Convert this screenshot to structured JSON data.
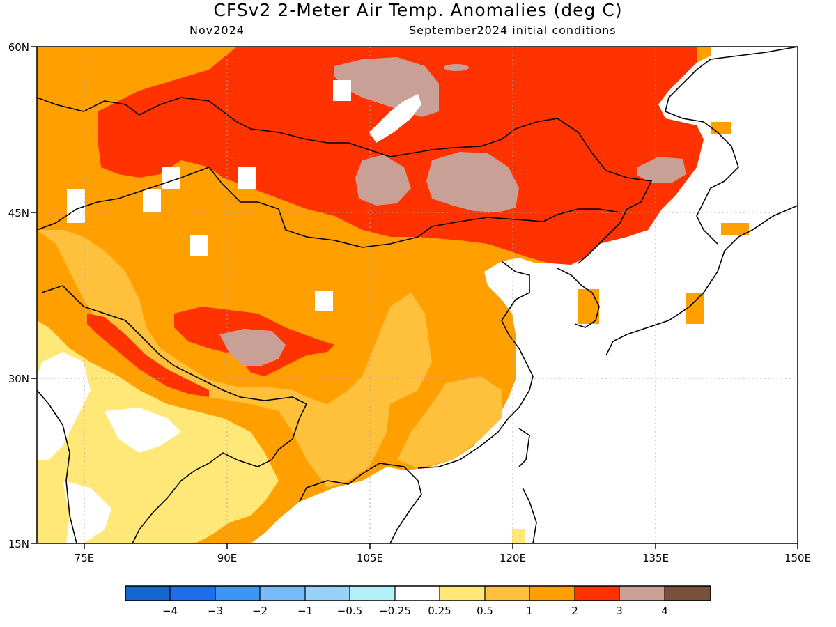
{
  "title": "CFSv2 2-Meter Air Temp. Anomalies (deg C)",
  "subtitle_left": "Nov2024",
  "subtitle_right": "September2024 initial conditions",
  "map": {
    "lat_range": [
      15,
      60
    ],
    "lon_range": [
      70,
      150
    ],
    "lat_ticks": [
      "60N",
      "45N",
      "30N",
      "15N"
    ],
    "lon_ticks": [
      "75E",
      "90E",
      "105E",
      "120E",
      "135E",
      "150E"
    ],
    "grid": true,
    "grid_style": "dotted"
  },
  "colorbar": {
    "colors": [
      "#1464d2",
      "#1e6eeb",
      "#3c96f5",
      "#78b9fa",
      "#96d2fa",
      "#b4f0fa",
      "#ffffff",
      "#ffe878",
      "#ffc03c",
      "#ffa000",
      "#ff3200",
      "#c8a096",
      "#78503c"
    ],
    "labels": [
      "-4",
      "-3",
      "-2",
      "-1",
      "-0.5",
      "-0.25",
      "0.25",
      "0.5",
      "1",
      "2",
      "3",
      "4"
    ]
  }
}
